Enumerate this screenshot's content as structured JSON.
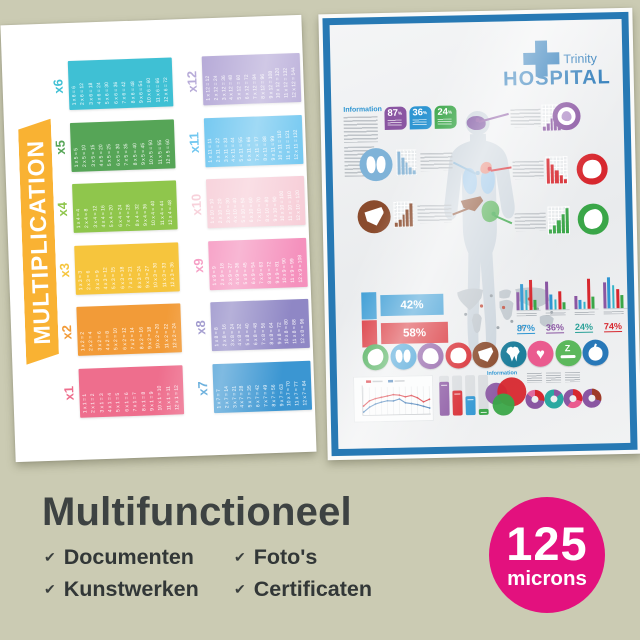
{
  "page": {
    "background": "#cbcbb3"
  },
  "left_poster": {
    "title": "MULTIPLICATION",
    "banner_color": "#f9b233",
    "columns": [
      {
        "label": "x6",
        "color": "#3fc0d4",
        "facts": [
          "1 x 6 = 6",
          "2 x 6 = 12",
          "3 x 6 = 18",
          "4 x 6 = 24",
          "5 x 6 = 30",
          "6 x 6 = 36",
          "7 x 6 = 42",
          "8 x 6 = 48",
          "9 x 6 = 54",
          "10 x 6 = 60",
          "11 x 6 = 66",
          "12 x 6 = 72"
        ]
      },
      {
        "label": "x5",
        "color": "#56a557",
        "facts": [
          "1 x 5 = 5",
          "2 x 5 = 10",
          "3 x 5 = 15",
          "4 x 5 = 20",
          "5 x 5 = 25",
          "6 x 5 = 30",
          "7 x 5 = 35",
          "8 x 5 = 40",
          "9 x 5 = 45",
          "10 x 5 = 50",
          "11 x 5 = 55",
          "12 x 5 = 60"
        ]
      },
      {
        "label": "x4",
        "color": "#8fc64c",
        "facts": [
          "1 x 4 = 4",
          "2 x 4 = 8",
          "3 x 4 = 12",
          "4 x 4 = 16",
          "5 x 4 = 20",
          "6 x 4 = 24",
          "7 x 4 = 28",
          "8 x 4 = 32",
          "9 x 4 = 36",
          "10 x 4 = 40",
          "11 x 4 = 44",
          "12 x 4 = 48"
        ]
      },
      {
        "label": "x3",
        "color": "#f6c53d",
        "facts": [
          "1 x 3 = 3",
          "2 x 3 = 6",
          "3 x 3 = 9",
          "4 x 3 = 12",
          "5 x 3 = 15",
          "6 x 3 = 18",
          "7 x 3 = 21",
          "8 x 3 = 24",
          "9 x 3 = 27",
          "10 x 3 = 30",
          "11 x 3 = 33",
          "12 x 3 = 36"
        ]
      },
      {
        "label": "x2",
        "color": "#f29b38",
        "facts": [
          "1 x 2 = 2",
          "2 x 2 = 4",
          "3 x 2 = 6",
          "4 x 2 = 8",
          "5 x 2 = 10",
          "6 x 2 = 12",
          "7 x 2 = 14",
          "8 x 2 = 16",
          "9 x 2 = 18",
          "10 x 2 = 20",
          "11 x 2 = 22",
          "12 x 2 = 24"
        ]
      },
      {
        "label": "x1",
        "color": "#ee6e8d",
        "facts": [
          "1 x 1 = 1",
          "2 x 1 = 2",
          "3 x 1 = 3",
          "4 x 1 = 4",
          "5 x 1 = 5",
          "6 x 1 = 6",
          "7 x 1 = 7",
          "8 x 1 = 8",
          "9 x 1 = 9",
          "10 x 1 = 10",
          "11 x 1 = 11",
          "12 x 1 = 12"
        ]
      },
      {
        "label": "x12",
        "color": "#b7abd8",
        "facts": [
          "1 x 12 = 12",
          "2 x 12 = 24",
          "3 x 12 = 36",
          "4 x 12 = 48",
          "5 x 12 = 60",
          "6 x 12 = 72",
          "7 x 12 = 84",
          "8 x 12 = 96",
          "9 x 12 = 108",
          "10 x 12 = 120",
          "11 x 12 = 132",
          "12 x 12 = 144"
        ]
      },
      {
        "label": "x11",
        "color": "#6ec6f0",
        "facts": [
          "1 x 11 = 11",
          "2 x 11 = 22",
          "3 x 11 = 33",
          "4 x 11 = 44",
          "5 x 11 = 55",
          "6 x 11 = 66",
          "7 x 11 = 77",
          "8 x 11 = 88",
          "9 x 11 = 99",
          "10 x 11 = 110",
          "11 x 11 = 121",
          "12 x 11 = 132"
        ]
      },
      {
        "label": "x10",
        "color": "#f7ced8",
        "facts": [
          "1 x 10 = 10",
          "2 x 10 = 20",
          "3 x 10 = 30",
          "4 x 10 = 40",
          "5 x 10 = 50",
          "6 x 10 = 60",
          "7 x 10 = 70",
          "8 x 10 = 80",
          "9 x 10 = 90",
          "10 x 10 = 100",
          "11 x 10 = 110",
          "12 x 10 = 120"
        ]
      },
      {
        "label": "x9",
        "color": "#f591bd",
        "facts": [
          "1 x 9 = 9",
          "2 x 9 = 18",
          "3 x 9 = 27",
          "4 x 9 = 36",
          "5 x 9 = 45",
          "6 x 9 = 54",
          "7 x 9 = 63",
          "8 x 9 = 72",
          "9 x 9 = 81",
          "10 x 9 = 90",
          "11 x 9 = 99",
          "12 x 9 = 108"
        ]
      },
      {
        "label": "x8",
        "color": "#8f87c5",
        "facts": [
          "1 x 8 = 8",
          "2 x 8 = 16",
          "3 x 8 = 24",
          "4 x 8 = 32",
          "5 x 8 = 40",
          "6 x 8 = 48",
          "7 x 8 = 56",
          "8 x 8 = 64",
          "9 x 8 = 72",
          "10 x 8 = 80",
          "11 x 8 = 88",
          "12 x 8 = 96"
        ]
      },
      {
        "label": "x7",
        "color": "#3b96d2",
        "facts": [
          "1 x 7 = 7",
          "2 x 7 = 14",
          "3 x 7 = 21",
          "4 x 7 = 28",
          "5 x 7 = 35",
          "6 x 7 = 42",
          "7 x 7 = 49",
          "8 x 7 = 56",
          "9 x 7 = 63",
          "10 x 7 = 70",
          "11 x 7 = 77",
          "12 x 7 = 84"
        ]
      }
    ]
  },
  "right_poster": {
    "brand_name": "Trinity",
    "brand_title": "HOSPITAL",
    "brand_color": "#2878b8",
    "frame_color": "#2779b4",
    "info_heading": "Information",
    "info_heading2": "Information",
    "top_badges": [
      {
        "value": "87",
        "unit": "%",
        "color": "#8a56a2"
      },
      {
        "value": "36",
        "unit": "%",
        "color": "#2f96d2"
      },
      {
        "value": "24",
        "unit": "%",
        "color": "#3aa648"
      }
    ],
    "gender_stats": [
      {
        "label": "42%",
        "color": "#2f96d2"
      },
      {
        "label": "58%",
        "color": "#d7272e"
      }
    ],
    "stat_groups": [
      {
        "label": "87%",
        "color": "#2f96d2",
        "bars": [
          55,
          80,
          60,
          90,
          30
        ]
      },
      {
        "label": "36%",
        "color": "#8a56a2",
        "bars": [
          85,
          45,
          30,
          55,
          20
        ]
      },
      {
        "label": "24%",
        "color": "#2aa198",
        "bars": [
          40,
          28,
          22,
          90,
          35
        ]
      },
      {
        "label": "74%",
        "color": "#d7272e",
        "bars": [
          78,
          95,
          70,
          58,
          40
        ]
      }
    ],
    "organ_icons": [
      {
        "name": "stomach",
        "color": "#3aa648"
      },
      {
        "name": "lungs",
        "color": "#2f96d2"
      },
      {
        "name": "brain",
        "color": "#8a56a2"
      },
      {
        "name": "heart-organ",
        "color": "#d7272e"
      },
      {
        "name": "liver",
        "color": "#8a4b2d"
      },
      {
        "name": "tooth",
        "color": "#1f7f9c"
      },
      {
        "name": "heart",
        "color": "#ea5b8f"
      },
      {
        "name": "bed",
        "color": "#5cb85c"
      },
      {
        "name": "apple",
        "color": "#2878b8"
      }
    ],
    "line_chart": {
      "series": [
        {
          "name": "red",
          "color": "#d7272e",
          "values": [
            38,
            55,
            62,
            66,
            70,
            74,
            72,
            66,
            70,
            62,
            48,
            56
          ]
        },
        {
          "name": "blue",
          "color": "#2f6fb0",
          "values": [
            18,
            34,
            44,
            50,
            54,
            53,
            59,
            46,
            43,
            39,
            33,
            27
          ]
        }
      ]
    },
    "bar_chart": {
      "bars": [
        {
          "color": "#8a56a2",
          "value": 85
        },
        {
          "color": "#d7272e",
          "value": 62
        },
        {
          "color": "#2f96d2",
          "value": 48
        },
        {
          "color": "#3aa648",
          "value": 16
        }
      ]
    },
    "donuts": [
      {
        "segments": [
          {
            "color": "#d7272e",
            "pct": 28
          },
          {
            "color": "#8a56a2",
            "pct": 57
          },
          {
            "color": "#e06a9f",
            "pct": 15
          }
        ]
      },
      {
        "segments": [
          {
            "color": "#8a56a2",
            "pct": 15
          },
          {
            "color": "#2aa8a0",
            "pct": 85
          }
        ]
      },
      {
        "segments": [
          {
            "color": "#d7272e",
            "pct": 30
          },
          {
            "color": "#ea5b8f",
            "pct": 30
          },
          {
            "color": "#8a56a2",
            "pct": 40
          }
        ]
      },
      {
        "segments": [
          {
            "color": "#9e3a28",
            "pct": 30
          },
          {
            "color": "#8a56a2",
            "pct": 70
          }
        ]
      }
    ]
  },
  "bottom": {
    "heading": "Multifunctioneel",
    "check_glyph": "✔",
    "features": [
      "Documenten",
      "Kunstwerken",
      "Foto's",
      "Certificaten"
    ],
    "badge_value": "125",
    "badge_unit": "microns",
    "badge_color": "#e3117e"
  }
}
